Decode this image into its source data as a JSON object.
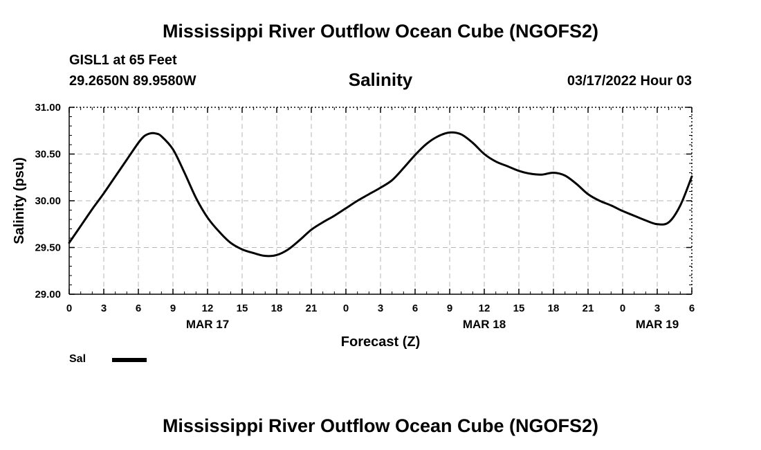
{
  "page": {
    "title": "Mississippi River Outflow Ocean Cube (NGOFS2)",
    "bottom_title": "Mississippi River Outflow Ocean Cube (NGOFS2)",
    "station": "GISL1 at 65 Feet",
    "coords": "29.2650N  89.9580W",
    "datetime": "03/17/2022 Hour 03"
  },
  "legend": {
    "label": "Sal"
  },
  "chart_data": {
    "type": "line",
    "title": "Salinity",
    "xlabel": "Forecast (Z)",
    "ylabel": "Salinity (psu)",
    "ylim": [
      29.0,
      31.0
    ],
    "xlim": [
      0,
      54
    ],
    "grid": true,
    "line_color": "#000000",
    "y_ticks": [
      29.0,
      29.5,
      30.0,
      30.5,
      31.0
    ],
    "y_tick_labels": [
      "29.00",
      "29.50",
      "30.00",
      "30.50",
      "31.00"
    ],
    "x_ticks": [
      0,
      3,
      6,
      9,
      12,
      15,
      18,
      21,
      24,
      27,
      30,
      33,
      36,
      39,
      42,
      45,
      48,
      51,
      54
    ],
    "x_tick_labels": [
      "0",
      "3",
      "6",
      "9",
      "12",
      "15",
      "18",
      "21",
      "0",
      "3",
      "6",
      "9",
      "12",
      "15",
      "18",
      "21",
      "0",
      "3",
      "6"
    ],
    "date_labels": [
      {
        "x": 12,
        "label": "MAR 17"
      },
      {
        "x": 36,
        "label": "MAR 18"
      },
      {
        "x": 51,
        "label": "MAR 19"
      }
    ],
    "series": [
      {
        "name": "Sal",
        "x": [
          0,
          1,
          2,
          3,
          4,
          5,
          6,
          6.5,
          7,
          7.5,
          8,
          9,
          10,
          11,
          12,
          13,
          14,
          15,
          16,
          17,
          18,
          19,
          20,
          21,
          22,
          23,
          24,
          25,
          26,
          27,
          28,
          29,
          30,
          31,
          32,
          33,
          34,
          35,
          36,
          37,
          38,
          39,
          40,
          41,
          42,
          43,
          44,
          45,
          46,
          47,
          48,
          49,
          50,
          51,
          52,
          53,
          54
        ],
        "values": [
          29.55,
          29.73,
          29.91,
          30.08,
          30.26,
          30.44,
          30.62,
          30.69,
          30.72,
          30.72,
          30.69,
          30.55,
          30.3,
          30.03,
          29.82,
          29.67,
          29.55,
          29.48,
          29.44,
          29.41,
          29.42,
          29.48,
          29.58,
          29.69,
          29.77,
          29.84,
          29.92,
          30.0,
          30.07,
          30.14,
          30.22,
          30.35,
          30.49,
          30.61,
          30.69,
          30.73,
          30.71,
          30.62,
          30.5,
          30.42,
          30.37,
          30.32,
          30.29,
          30.28,
          30.3,
          30.27,
          30.18,
          30.07,
          30.0,
          29.95,
          29.89,
          29.84,
          29.79,
          29.75,
          29.77,
          29.95,
          30.26
        ]
      }
    ]
  }
}
